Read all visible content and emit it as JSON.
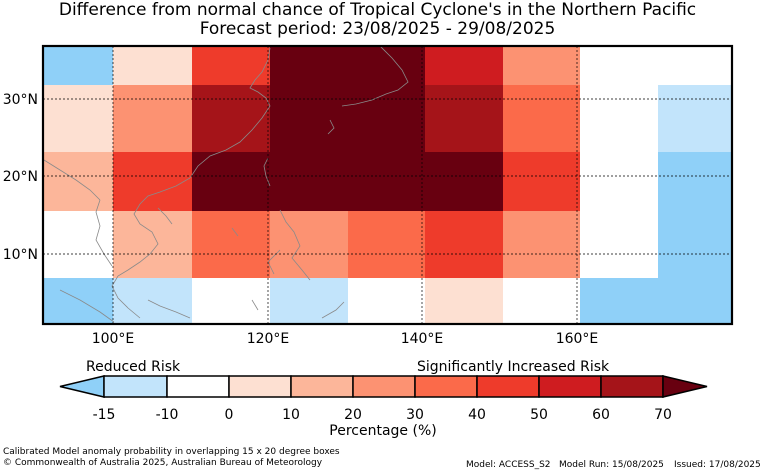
{
  "title_line1": "Difference from normal chance of Tropical Cyclone's in the Northern Pacific",
  "title_line2": "Forecast period: 23/08/2025 - 29/08/2025",
  "map": {
    "lat_labels": [
      "30°N",
      "20°N",
      "10°N"
    ],
    "lon_labels": [
      "100°E",
      "120°E",
      "140°E",
      "160°E"
    ],
    "grid_cells": [
      {
        "row": 0,
        "cols": [
          "#8fd0f8",
          "#fde0d2",
          "#ee3b2b",
          "#680010",
          "#680010",
          "#cf1c20",
          "#fc9272",
          "#ffffff",
          "#ffffff"
        ]
      },
      {
        "row": 1,
        "cols": [
          "#fde0d2",
          "#fc9272",
          "#a51419",
          "#680010",
          "#680010",
          "#a51419",
          "#fb6a4a",
          "#ffffff",
          "#c2e4fb"
        ]
      },
      {
        "row": 2,
        "cols": [
          "#fcb69a",
          "#ee3b2b",
          "#680010",
          "#680010",
          "#680010",
          "#680010",
          "#ee3b2b",
          "#ffffff",
          "#8fd0f8"
        ]
      },
      {
        "row": 3,
        "cols": [
          "#ffffff",
          "#fcb69a",
          "#fb6a4a",
          "#fc9272",
          "#fb6a4a",
          "#ee3b2b",
          "#fc9272",
          "#ffffff",
          "#8fd0f8"
        ]
      },
      {
        "row": 4,
        "cols": [
          "#8fd0f8",
          "#c2e4fb",
          "#ffffff",
          "#c2e4fb",
          "#ffffff",
          "#fde0d2",
          "#ffffff",
          "#8fd0f8",
          "#8fd0f8"
        ]
      }
    ]
  },
  "colorbar": {
    "left_label": "Reduced Risk",
    "right_label": "Significantly Increased Risk",
    "ticks": [
      "-15",
      "-10",
      "0",
      "10",
      "20",
      "30",
      "40",
      "50",
      "60",
      "70"
    ],
    "colors": [
      "#8fd0f8",
      "#c2e4fb",
      "#ffffff",
      "#fde0d2",
      "#fcb69a",
      "#fc9272",
      "#fb6a4a",
      "#ee3b2b",
      "#cf1c20",
      "#a51419",
      "#680010"
    ],
    "axis_label": "Percentage (%)"
  },
  "footer": {
    "line1": "Calibrated Model anomaly probability in overlapping 15 x 20 degree boxes",
    "line2": "© Commonwealth of Australia 2025, Australian Bureau of Meteorology",
    "model": "Model: ACCESS_S2",
    "model_run": "Model Run: 15/08/2025",
    "issued": "Issued: 17/08/2025"
  }
}
